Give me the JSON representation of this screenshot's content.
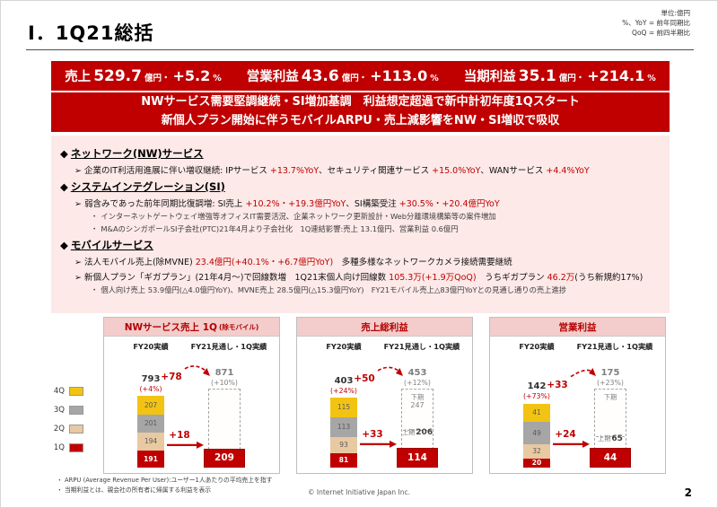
{
  "meta": {
    "notes": [
      "単位:億円",
      "%、YoY = 前年同期比",
      "QoQ = 前四半期比"
    ],
    "copyright": "© Internet Initiative Japan Inc.",
    "page_number": "2"
  },
  "title": "Ⅰ．1Q21総括",
  "colors": {
    "accent_red": "#C00000",
    "panel_pink": "#FCE9E8",
    "chart_header_pink": "#F2CDCB",
    "q4_yellow": "#F3C313",
    "q3_gray": "#A6A6A6",
    "q2_tan": "#E8C9A2",
    "q1_red": "#C00000"
  },
  "banner": {
    "metrics": [
      {
        "label": "売上",
        "value": "529.7",
        "unit": "億円・",
        "change": "+5.2",
        "change_unit": "%"
      },
      {
        "label": "営業利益",
        "value": "43.6",
        "unit": "億円・",
        "change": "+113.0",
        "change_unit": "%"
      },
      {
        "label": "当期利益",
        "value": "35.1",
        "unit": "億円・",
        "change": "+214.1",
        "change_unit": "%"
      }
    ],
    "message1": "NWサービス需要堅調継続・SI増加基調　利益想定超過で新中計初年度1Qスタート",
    "message2": "新個人プラン開始に伴うモバイルARPU・売上減影響をNW・SI増収で吸収"
  },
  "overview": {
    "markers": {
      "heading": "◆",
      "bullet": "➢",
      "sub": "・"
    },
    "groups": [
      {
        "heading": "ネットワーク(NW)サービス",
        "items": [
          {
            "level": 1,
            "parts": [
              {
                "t": "企業のIT利活用進展に伴い増収継続: IPサービス "
              },
              {
                "t": "+13.7%YoY",
                "red": true
              },
              {
                "t": "、セキュリティ関連サービス "
              },
              {
                "t": "+15.0%YoY",
                "red": true
              },
              {
                "t": "、WANサービス "
              },
              {
                "t": "+4.4%YoY",
                "red": true
              }
            ]
          }
        ]
      },
      {
        "heading": "システムインテグレーション(SI)",
        "items": [
          {
            "level": 1,
            "parts": [
              {
                "t": "弱含みであった前年同期比復調増: SI売上 "
              },
              {
                "t": "+10.2%・+19.3億円YoY",
                "red": true
              },
              {
                "t": "、SI構築受注 "
              },
              {
                "t": "+30.5%・+20.4億円YoY",
                "red": true
              }
            ]
          },
          {
            "level": 2,
            "parts": [
              {
                "t": "インターネットゲートウェイ増強等オフィスIT需要活況、企業ネットワーク更新設計・Web分離環境構築等の案件増加"
              }
            ]
          },
          {
            "level": 2,
            "parts": [
              {
                "t": "M&AのシンガポールSI子会社(PTC)21年4月より子会社化　1Q連結影響:売上 13.1億円、営業利益 0.6億円"
              }
            ]
          }
        ]
      },
      {
        "heading": "モバイルサービス",
        "items": [
          {
            "level": 1,
            "parts": [
              {
                "t": "法人モバイル売上(除MVNE) "
              },
              {
                "t": "23.4億円(+40.1%・+6.7億円YoY)",
                "red": true
              },
              {
                "t": "　多種多様なネットワークカメラ接続需要継続"
              }
            ]
          },
          {
            "level": 1,
            "parts": [
              {
                "t": "新個人プラン「ギガプラン」(21年4月〜)で回線数増　1Q21末個人向け回線数 "
              },
              {
                "t": "105.3万(+1.9万QoQ)",
                "red": true
              },
              {
                "t": "　うちギガプラン "
              },
              {
                "t": "46.2万",
                "red": true
              },
              {
                "t": "(うち新規約17%)"
              }
            ]
          },
          {
            "level": 2,
            "parts": [
              {
                "t": "個人向け売上 53.9億円(△4.0億円YoY)、MVNE売上 28.5億円(△15.3億円YoY)　FY21モバイル売上△83億円YoYとの見通し通りの売上進捗"
              }
            ]
          }
        ]
      }
    ]
  },
  "legend": {
    "items": [
      {
        "label": "4Q",
        "color": "#F3C313"
      },
      {
        "label": "3Q",
        "color": "#A6A6A6"
      },
      {
        "label": "2Q",
        "color": "#E8C9A2"
      },
      {
        "label": "1Q",
        "color": "#C00000"
      }
    ]
  },
  "chart_data": [
    {
      "type": "bar",
      "title": "NWサービス売上 1Q",
      "title_note": "(除モバイル)",
      "columns": [
        "FY20実績",
        "FY21見通し・1Q実績"
      ],
      "fy20": {
        "total": 793,
        "yoy": "(+4%)",
        "segments": [
          207,
          201,
          194,
          191
        ]
      },
      "forecast": {
        "total": 871,
        "yoy": "(+10%)",
        "delta": "+78",
        "h2_label": "",
        "h2_value": null,
        "h1_label": "",
        "h1_value": null
      },
      "actual": {
        "value": 209,
        "delta": "+18"
      }
    },
    {
      "type": "bar",
      "title": "売上総利益",
      "title_note": "",
      "columns": [
        "FY20実績",
        "FY21見通し・1Q実績"
      ],
      "fy20": {
        "total": 403,
        "yoy": "(+24%)",
        "segments": [
          115,
          113,
          93,
          81
        ]
      },
      "forecast": {
        "total": 453,
        "yoy": "(+12%)",
        "delta": "+50",
        "h2_label": "下期",
        "h2_value": 247,
        "h1_label": "上期",
        "h1_value": 206
      },
      "actual": {
        "value": 114,
        "delta": "+33"
      }
    },
    {
      "type": "bar",
      "title": "営業利益",
      "title_note": "",
      "columns": [
        "FY20実績",
        "FY21見通し・1Q実績"
      ],
      "fy20": {
        "total": 142,
        "yoy": "(+73%)",
        "segments": [
          41,
          49,
          32,
          20
        ]
      },
      "forecast": {
        "total": 175,
        "yoy": "(+23%)",
        "delta": "+33",
        "h2_label": "下期",
        "h2_value": null,
        "h1_label": "上期",
        "h1_value": 65
      },
      "actual": {
        "value": 44,
        "delta": "+24"
      }
    }
  ],
  "footer": {
    "notes": [
      "・ ARPU (Average Revenue Per User):ユーザー1人あたりの平均売上を指す",
      "・ 当期利益とは、親会社の所有者に帰属する利益を表示"
    ]
  }
}
